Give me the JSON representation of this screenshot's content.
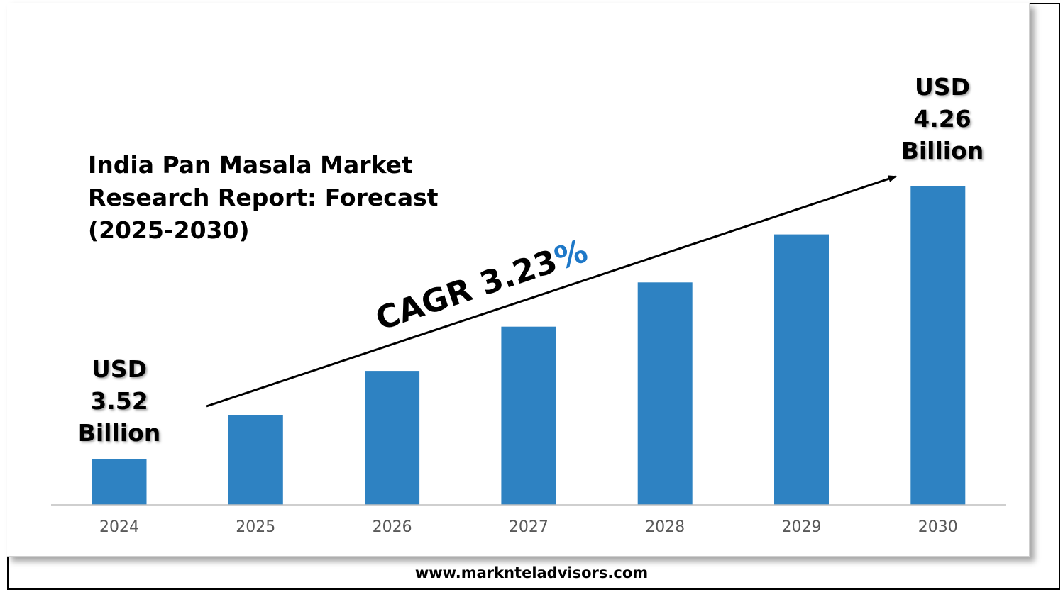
{
  "title_lines": [
    "India Pan Masala Market",
    "Research Report: Forecast",
    "(2025-2030)"
  ],
  "callout_start": {
    "line1": "USD",
    "line2": "3.52",
    "line3": "Billion"
  },
  "callout_end": {
    "line1": "USD",
    "line2": "4.26",
    "line3": "Billion"
  },
  "cagr": {
    "prefix": "CAGR 3.23",
    "suffix": "%"
  },
  "footer": {
    "website": "www.marknteladvisors.com"
  },
  "colors": {
    "bar": "#2e82c2",
    "percent": "#1e78c8",
    "axis": "#bfbfbf",
    "tick_text": "#595959"
  },
  "chart_data": {
    "type": "bar",
    "categories": [
      "2024",
      "2025",
      "2026",
      "2027",
      "2028",
      "2029",
      "2030"
    ],
    "values": [
      3.52,
      3.64,
      3.76,
      3.88,
      4.0,
      4.13,
      4.26
    ],
    "title": "India Pan Masala Market Research Report: Forecast (2025-2030)",
    "xlabel": "",
    "ylabel": "",
    "grid": false,
    "legend": "none"
  }
}
